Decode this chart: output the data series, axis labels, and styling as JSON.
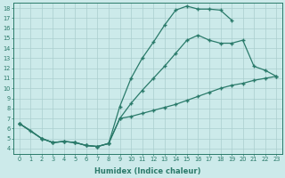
{
  "xlabel": "Humidex (Indice chaleur)",
  "bg_color": "#cceaea",
  "line_color": "#2a7a6a",
  "grid_color": "#aacece",
  "xlim": [
    -0.5,
    23.5
  ],
  "ylim": [
    3.5,
    18.5
  ],
  "xticks": [
    0,
    1,
    2,
    3,
    4,
    5,
    6,
    7,
    8,
    9,
    10,
    11,
    12,
    13,
    14,
    15,
    16,
    17,
    18,
    19,
    20,
    21,
    22,
    23
  ],
  "yticks": [
    4,
    5,
    6,
    7,
    8,
    9,
    10,
    11,
    12,
    13,
    14,
    15,
    16,
    17,
    18
  ],
  "line1_x": [
    0,
    1,
    2,
    3,
    4,
    5,
    6,
    7,
    8,
    9,
    10,
    11,
    12,
    13,
    14,
    15,
    16,
    17,
    18,
    19
  ],
  "line1_y": [
    6.5,
    5.8,
    5.0,
    4.6,
    4.7,
    4.6,
    4.3,
    4.2,
    4.5,
    8.2,
    11.0,
    13.0,
    14.6,
    16.3,
    17.8,
    18.2,
    17.9,
    17.9,
    17.8,
    16.8
  ],
  "line2_x": [
    0,
    2,
    3,
    4,
    5,
    6,
    7,
    8,
    9,
    10,
    11,
    12,
    13,
    14,
    15,
    16,
    17,
    18,
    19,
    20,
    21,
    22,
    23
  ],
  "line2_y": [
    6.5,
    5.0,
    4.6,
    4.7,
    4.6,
    4.3,
    4.2,
    4.5,
    7.0,
    8.5,
    9.8,
    11.0,
    12.2,
    13.5,
    14.8,
    15.3,
    14.8,
    14.5,
    14.5,
    14.8,
    12.2,
    11.8,
    11.2
  ],
  "line3_x": [
    0,
    2,
    3,
    4,
    5,
    6,
    7,
    8,
    9,
    10,
    11,
    12,
    13,
    14,
    15,
    16,
    17,
    18,
    19,
    20,
    21,
    22,
    23
  ],
  "line3_y": [
    6.5,
    5.0,
    4.6,
    4.7,
    4.6,
    4.3,
    4.2,
    4.5,
    7.0,
    7.2,
    7.5,
    7.8,
    8.1,
    8.4,
    8.8,
    9.2,
    9.6,
    10.0,
    10.3,
    10.5,
    10.8,
    11.0,
    11.2
  ]
}
